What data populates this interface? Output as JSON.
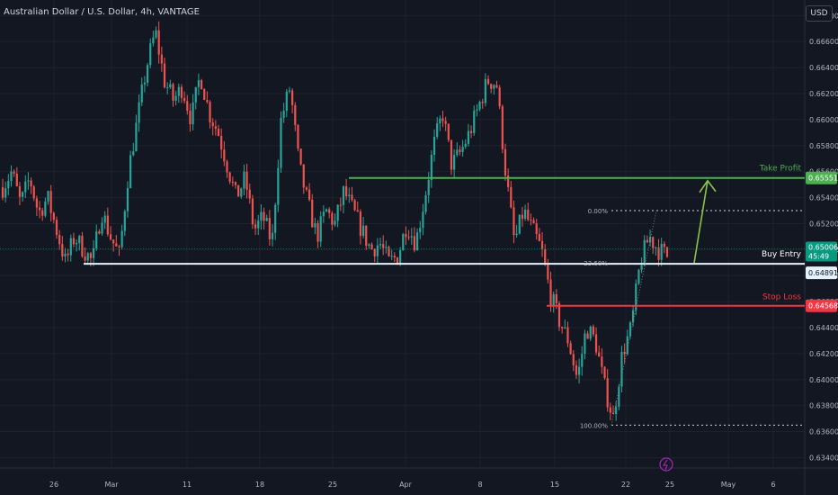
{
  "header": {
    "symbol_title": "Australian Dollar / U.S. Dollar, 4h, VANTAGE",
    "currency_button": "USD"
  },
  "colors": {
    "background": "#131722",
    "grid": "#1e222d",
    "up": "#26a69a",
    "down": "#ef5350",
    "take_profit": "#4caf50",
    "stop_loss": "#f23645",
    "entry_line": "#e3f2fd",
    "arrow": "#8bc34a",
    "fib": "#d1d4dc",
    "current_price": "#089981"
  },
  "chart_data": {
    "type": "candlestick",
    "title": "Australian Dollar / U.S. Dollar, 4h, VANTAGE",
    "x_ticks": [
      "26",
      "Mar",
      "11",
      "18",
      "25",
      "Apr",
      "8",
      "15",
      "22",
      "25",
      "May",
      "6"
    ],
    "y_ticks": [
      "0.63400",
      "0.63600",
      "0.63800",
      "0.64000",
      "0.64200",
      "0.64400",
      "0.64600",
      "0.64800",
      "0.65000",
      "0.65200",
      "0.65400",
      "0.65600",
      "0.65800",
      "0.66000",
      "0.66200",
      "0.66400",
      "0.66600",
      "0.66800"
    ],
    "ylim": [
      0.6332,
      0.6692
    ],
    "grid": true,
    "ohlc_path": [
      0.6548,
      0.656,
      0.6535,
      0.6555,
      0.6528,
      0.654,
      0.6515,
      0.649,
      0.651,
      0.65,
      0.649,
      0.653,
      0.651,
      0.6495,
      0.656,
      0.66,
      0.664,
      0.6668,
      0.663,
      0.6615,
      0.6625,
      0.66,
      0.6635,
      0.6605,
      0.659,
      0.6565,
      0.654,
      0.6555,
      0.6515,
      0.6525,
      0.6505,
      0.66,
      0.6625,
      0.6565,
      0.6535,
      0.651,
      0.653,
      0.652,
      0.6545,
      0.653,
      0.6515,
      0.65,
      0.6505,
      0.649,
      0.6495,
      0.652,
      0.6505,
      0.654,
      0.658,
      0.6605,
      0.6565,
      0.6575,
      0.659,
      0.661,
      0.663,
      0.6628,
      0.656,
      0.6505,
      0.653,
      0.6515,
      0.65,
      0.6465,
      0.6445,
      0.643,
      0.64,
      0.644,
      0.643,
      0.6395,
      0.637,
      0.642,
      0.644,
      0.649,
      0.651,
      0.65,
      0.6495
    ],
    "levels": [
      {
        "name": "Take Profit",
        "price": 0.65551,
        "price_label": "0.65551"
      },
      {
        "name": "Buy Entry",
        "price": 0.64891,
        "price_label": "0.64891"
      },
      {
        "name": "Stop Loss",
        "price": 0.64568,
        "price_label": "0.64568"
      }
    ],
    "fibonacci": [
      {
        "label": "0.00%",
        "price": 0.653
      },
      {
        "label": "23.60%",
        "price": 0.6489
      },
      {
        "label": "100.00%",
        "price": 0.6365
      }
    ],
    "current_price": {
      "value": "0.65006",
      "countdown": "45:49",
      "price": 0.65006
    },
    "annotations": {
      "take_profit": "Take Profit",
      "buy_entry": "Buy Entry",
      "stop_loss": "Stop Loss"
    }
  }
}
